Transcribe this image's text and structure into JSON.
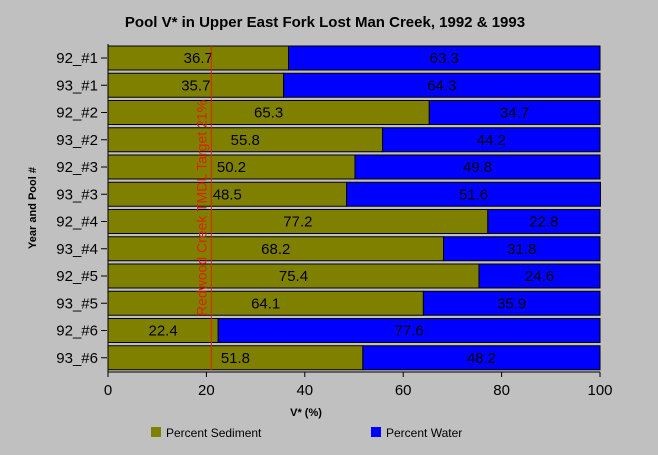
{
  "chart_data": {
    "type": "bar",
    "orientation": "horizontal",
    "stacked": true,
    "title": "Pool V* in Upper East Fork Lost Man Creek, 1992 & 1993",
    "xlabel": "V* (%)",
    "ylabel": "Year and Pool #",
    "xlim": [
      0,
      100
    ],
    "xticks": [
      0,
      20,
      40,
      60,
      80,
      100
    ],
    "categories": [
      "92_#1",
      "93_#1",
      "92_#2",
      "93_#2",
      "92_#3",
      "93_#3",
      "92_#4",
      "93_#4",
      "92_#5",
      "93_#5",
      "92_#6",
      "93_#6"
    ],
    "series": [
      {
        "name": "Percent Sediment",
        "color": "#808000",
        "values": [
          36.7,
          35.7,
          65.3,
          55.8,
          50.2,
          48.5,
          77.2,
          68.2,
          75.4,
          64.1,
          22.4,
          51.8
        ],
        "labels": [
          "36.7",
          "35.7",
          "65.3",
          "55.8",
          "50.2",
          "48.5",
          "77.2",
          "68.2",
          "75.4",
          "64.1",
          "22.4",
          "51.8"
        ]
      },
      {
        "name": "Percent Water",
        "color": "#0000ff",
        "values": [
          63.3,
          64.3,
          34.7,
          44.2,
          49.8,
          51.6,
          22.8,
          31.8,
          24.6,
          35.9,
          77.6,
          48.2
        ],
        "labels": [
          "63.3",
          "64.3",
          "34.7",
          "44.2",
          "49.8",
          "51.6",
          "22.8",
          "31.8",
          "24.6",
          "35.9",
          "77.6",
          "48.2"
        ]
      }
    ],
    "reference_line": {
      "value": 21,
      "label": "Redwood Creek TMDL Target 21%",
      "color": "#e02000"
    },
    "legend_position": "bottom",
    "grid": false
  }
}
